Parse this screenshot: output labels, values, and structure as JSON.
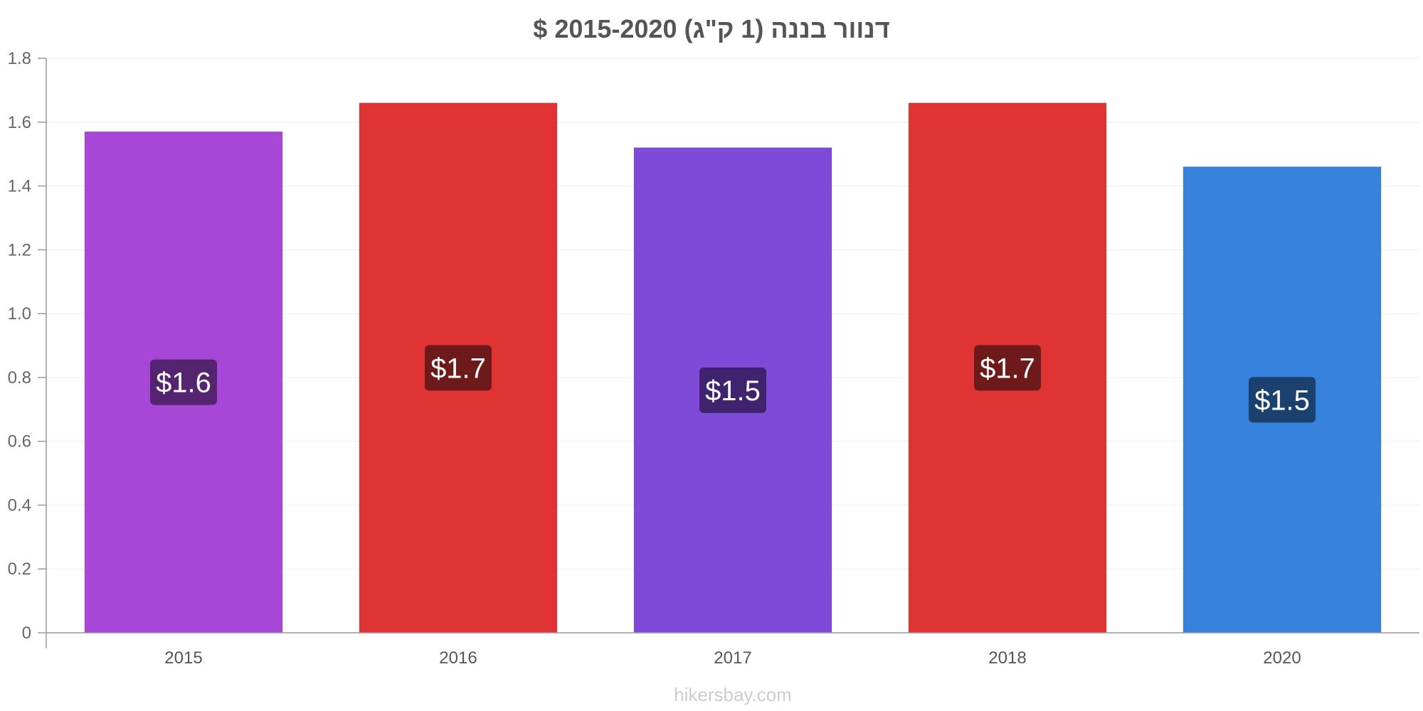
{
  "chart_data": {
    "type": "bar",
    "title": "דנוור בננה (1 ק\"ג) 2015-2020 $",
    "categories": [
      "2015",
      "2016",
      "2017",
      "2018",
      "2020"
    ],
    "values": [
      1.57,
      1.66,
      1.52,
      1.66,
      1.46
    ],
    "data_labels": [
      "$1.6",
      "$1.7",
      "$1.5",
      "$1.7",
      "$1.5"
    ],
    "bar_colors": [
      "#a647d8",
      "#e03434",
      "#804ad8",
      "#e03434",
      "#3682dd"
    ],
    "label_bg_colors": [
      "#552470",
      "#6e1a1a",
      "#40236e",
      "#6e1a1a",
      "#1b416e"
    ],
    "ylim": [
      0,
      1.8
    ],
    "yticks": [
      0,
      0.2,
      0.4,
      0.6,
      0.8,
      1.0,
      1.2,
      1.4,
      1.6,
      1.8
    ],
    "ytick_labels": [
      "0",
      "0.2",
      "0.4",
      "0.6",
      "0.8",
      "1.0",
      "1.2",
      "1.4",
      "1.6",
      "1.8"
    ],
    "xlabel": "",
    "ylabel": "",
    "grid": true,
    "legend": "none"
  },
  "watermark": "hikersbay.com"
}
